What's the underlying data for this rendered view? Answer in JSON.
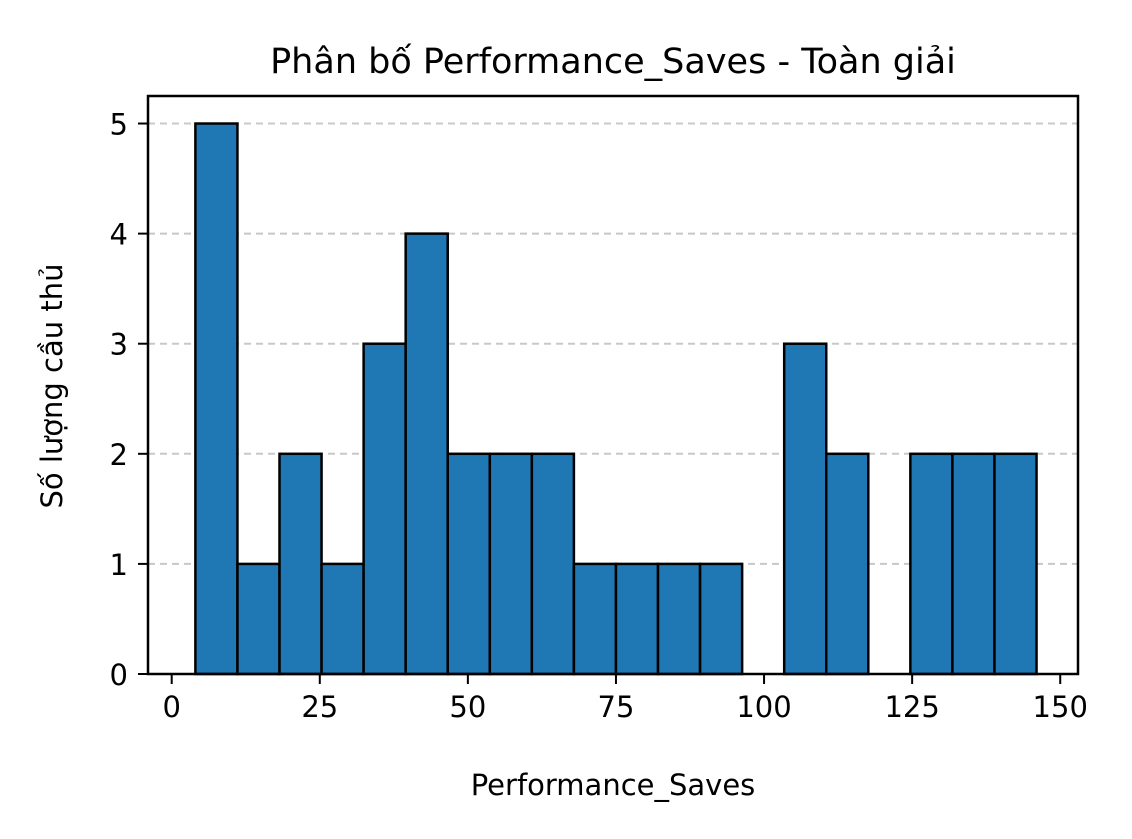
{
  "chart_data": {
    "type": "bar",
    "title": "Phân bố Performance_Saves - Toàn giải",
    "xlabel": "Performance_Saves",
    "ylabel": "Số lượng cầu thủ",
    "bin_edges": [
      4,
      11.1,
      18.2,
      25.3,
      32.4,
      39.5,
      46.6,
      53.7,
      60.8,
      67.9,
      75,
      82.1,
      89.2,
      96.3,
      103.4,
      110.5,
      117.6,
      124.7,
      131.8,
      138.9,
      146
    ],
    "values": [
      5,
      1,
      2,
      1,
      3,
      4,
      2,
      2,
      2,
      1,
      1,
      1,
      1,
      0,
      3,
      2,
      0,
      2,
      2,
      2
    ],
    "xlim": [
      -4,
      153
    ],
    "ylim": [
      0,
      5.25
    ],
    "x_ticks": [
      0,
      25,
      50,
      75,
      100,
      125,
      150
    ],
    "y_ticks": [
      0,
      1,
      2,
      3,
      4,
      5
    ],
    "grid": "y, dashed",
    "legend": "none",
    "colors": {
      "bar_fill": "#1f77b4",
      "bar_edge": "#000000",
      "grid": "#c8c8c8",
      "axis": "#000000"
    }
  }
}
